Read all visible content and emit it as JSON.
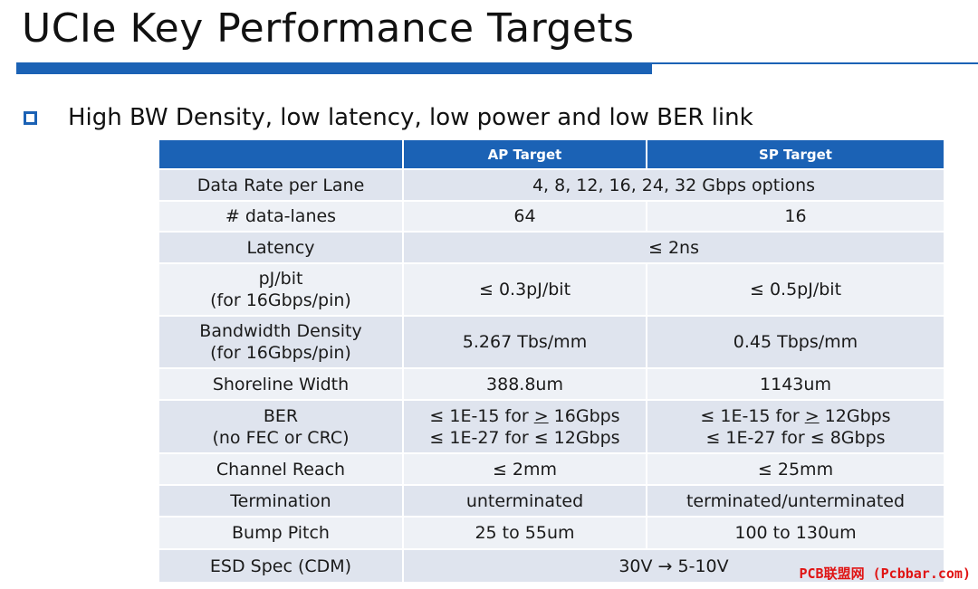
{
  "slide": {
    "title": "UCIe Key Performance Targets",
    "bullet": "High BW Density, low latency, low power and low BER link",
    "brand_color": "#1b62b5",
    "watermark": "PCB联盟网 (Pcbbar.com)"
  },
  "table": {
    "headers": [
      "",
      "AP Target",
      "SP Target"
    ],
    "rows": {
      "data_rate": {
        "label": "Data Rate per Lane",
        "merged": "4, 8, 12, 16, 24, 32 Gbps options"
      },
      "data_lanes": {
        "label": "# data-lanes",
        "ap": "64",
        "sp": "16"
      },
      "latency": {
        "label": "Latency",
        "merged": "≤ 2ns"
      },
      "pj_bit": {
        "label": "pJ/bit\n(for 16Gbps/pin)",
        "ap": "≤ 0.3pJ/bit",
        "sp": "≤ 0.5pJ/bit"
      },
      "bw_density": {
        "label": "Bandwidth Density\n(for 16Gbps/pin)",
        "ap": "5.267 Tbs/mm",
        "sp": "0.45 Tbps/mm"
      },
      "shoreline": {
        "label": "Shoreline Width",
        "ap": "388.8um",
        "sp": "1143um"
      },
      "ber": {
        "label": "BER\n(no FEC or CRC)",
        "ap_line1_pre": "≤ 1E-15 for ",
        "ap_line1_ge": ">",
        "ap_line1_post": " 16Gbps",
        "ap_line2": "≤ 1E-27 for ≤ 12Gbps",
        "sp_line1_pre": "≤ 1E-15 for ",
        "sp_line1_ge": ">",
        "sp_line1_post": " 12Gbps",
        "sp_line2": "≤ 1E-27 for ≤ 8Gbps"
      },
      "reach": {
        "label": "Channel Reach",
        "ap": "≤ 2mm",
        "sp": "≤ 25mm"
      },
      "termination": {
        "label": "Termination",
        "ap": "unterminated",
        "sp": "terminated/unterminated"
      },
      "bump_pitch": {
        "label": "Bump Pitch",
        "ap": "25 to 55um",
        "sp": "100 to 130um"
      },
      "esd": {
        "label": "ESD Spec (CDM)",
        "merged": "30V  → 5-10V"
      }
    }
  }
}
